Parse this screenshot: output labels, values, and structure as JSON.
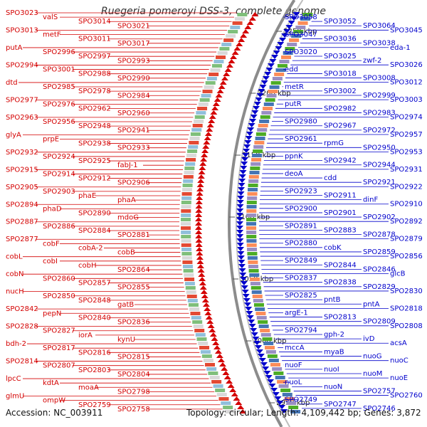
{
  "title": "Ruegeria pomeroyi DSS-3, complete genome",
  "footer": {
    "accession": "Accession: NC_003911",
    "topology": "Topology: circular; Length: 4,109,442 bp; Genes: 3,872"
  },
  "colors": {
    "minus_strand": "#d40000",
    "plus_strand": "#0000cc",
    "backbone": "#8c8c8c",
    "tick": "#2a8a2a"
  },
  "coordinates": [
    "3250 kbp",
    "3200 kbp",
    "3150 kbp",
    "3100 kbp",
    "3050 kbp",
    "3000 kbp",
    "2950 kbp"
  ],
  "left_labels": [
    "SPO3023",
    "valS",
    "SPO3014",
    "SPO3021",
    "SPO3013",
    "metF",
    "SPO3011",
    "SPO3017",
    "putA",
    "SPO2996",
    "SPO2997",
    "SPO2993",
    "SPO2994",
    "SPO3001",
    "SPO2988",
    "SPO2990",
    "dtd",
    "SPO2985",
    "SPO2978",
    "SPO2984",
    "SPO2977",
    "SPO2976",
    "SPO2962",
    "SPO2960",
    "SPO2963",
    "SPO2956",
    "SPO2948",
    "SPO2941",
    "glyA",
    "prpE",
    "SPO2938",
    "SPO2933",
    "SPO2932",
    "SPO2924",
    "SPO2925",
    "fabJ-1",
    "SPO2915",
    "SPO2914",
    "SPO2912",
    "SPO2906",
    "SPO2905",
    "SPO2903",
    "phaE",
    "phaA",
    "SPO2894",
    "phaD",
    "SPO2890",
    "mdoG",
    "SPO2887",
    "SPO2886",
    "SPO2884",
    "SPO2881",
    "SPO2877",
    "cobF",
    "cobA-2",
    "cobB",
    "cobL",
    "cobI",
    "cobH",
    "SPO2864",
    "cobN",
    "SPO2860",
    "SPO2857",
    "SPO2855",
    "nucH",
    "SPO2850",
    "SPO2848",
    "gatB",
    "SPO2842",
    "pepN",
    "SPO2840",
    "SPO2836",
    "SPO2828",
    "SPO2827",
    "iorA",
    "kynU",
    "bdh-2",
    "SPO2817",
    "SPO2816",
    "SPO2815",
    "SPO2814",
    "SPO2807",
    "SPO2803",
    "SPO2804",
    "lpcC",
    "kdtA",
    "moaA",
    "SPO2798",
    "glmU",
    "ompW",
    "SPO2759",
    "SPO2758"
  ],
  "right_labels": [
    "SPO3058",
    "SPO3052",
    "SPO3064",
    "SPO3045",
    "SPO3047",
    "SPO3036",
    "SPO3038",
    "eda-1",
    "SPO3020",
    "SPO3025",
    "zwf-2",
    "SPO3026",
    "edd",
    "SPO3018",
    "SPO3008",
    "SPO3012",
    "metR",
    "SPO3002",
    "SPO2999",
    "SPO3003",
    "putR",
    "SPO2982",
    "SPO2983",
    "SPO2974",
    "SPO2980",
    "SPO2967",
    "SPO2972",
    "SPO2957",
    "SPO2961",
    "rpmG",
    "SPO2950",
    "SPO2953",
    "ppnK",
    "SPO2942",
    "SPO2944",
    "SPO2931",
    "deoA",
    "cdd",
    "SPO2921",
    "SPO2922",
    "SPO2923",
    "SPO2911",
    "dinF",
    "SPO2910",
    "SPO2900",
    "SPO2901",
    "SPO2902",
    "SPO2892",
    "SPO2891",
    "SPO2883",
    "SPO2878",
    "SPO2879",
    "SPO2880",
    "cobK",
    "SPO2859",
    "SPO2856",
    "SPO2849",
    "SPO2844",
    "SPO2846",
    "glcB",
    "SPO2837",
    "SPO2838",
    "SPO2829",
    "SPO2830",
    "SPO2825",
    "pntB",
    "pntA",
    "SPO2818",
    "argE-1",
    "SPO2813",
    "SPO2809",
    "SPO2808",
    "SPO2794",
    "gph-2",
    "ivD",
    "acsA",
    "mccA",
    "myaB",
    "nuoG",
    "nuoC",
    "nuoF",
    "nuoI",
    "nuoM",
    "nuoE",
    "nuoL",
    "nuoN",
    "SPO2757",
    "SPO2760",
    "SPO2749",
    "SPO2747",
    "SPO2746"
  ]
}
